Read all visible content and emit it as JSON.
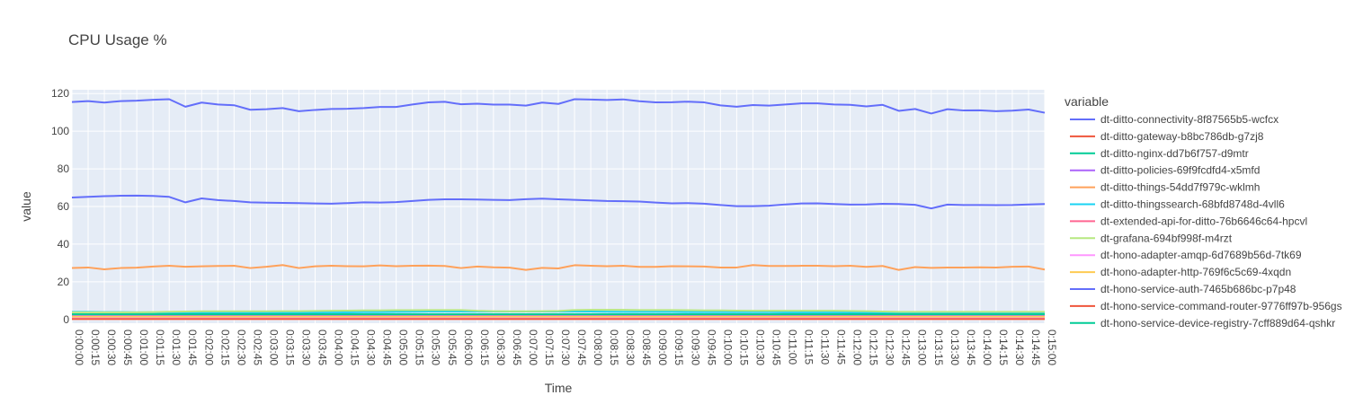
{
  "chart_data": {
    "type": "line",
    "title": "CPU Usage %",
    "xlabel": "Time",
    "ylabel": "value",
    "ylim": [
      -2,
      122
    ],
    "yticks": [
      0,
      20,
      40,
      60,
      80,
      100,
      120
    ],
    "grid": true,
    "legend_title": "variable",
    "legend_position": "right",
    "x": [
      "0:00:00",
      "0:00:15",
      "0:00:30",
      "0:00:45",
      "0:01:00",
      "0:01:15",
      "0:01:30",
      "0:01:45",
      "0:02:00",
      "0:02:15",
      "0:02:30",
      "0:02:45",
      "0:03:00",
      "0:03:15",
      "0:03:30",
      "0:03:45",
      "0:04:00",
      "0:04:15",
      "0:04:30",
      "0:04:45",
      "0:05:00",
      "0:05:15",
      "0:05:30",
      "0:05:45",
      "0:06:00",
      "0:06:15",
      "0:06:30",
      "0:06:45",
      "0:07:00",
      "0:07:15",
      "0:07:30",
      "0:07:45",
      "0:08:00",
      "0:08:15",
      "0:08:30",
      "0:08:45",
      "0:09:00",
      "0:09:15",
      "0:09:30",
      "0:09:45",
      "0:10:00",
      "0:10:15",
      "0:10:30",
      "0:10:45",
      "0:11:00",
      "0:11:15",
      "0:11:30",
      "0:11:45",
      "0:12:00",
      "0:12:15",
      "0:12:30",
      "0:12:45",
      "0:13:00",
      "0:13:15",
      "0:13:30",
      "0:13:45",
      "0:14:00",
      "0:14:15",
      "0:14:30",
      "0:14:45",
      "0:15:00"
    ],
    "series": [
      {
        "name": "dt-ditto-connectivity-8f87565b5-wcfcx",
        "color": "#636efa",
        "values": [
          115.5,
          116,
          115.2,
          116,
          116.2,
          116.7,
          117,
          113,
          115.2,
          114.2,
          113.8,
          111.4,
          111.7,
          112.3,
          110.6,
          111.3,
          111.8,
          111.9,
          112.3,
          112.9,
          112.9,
          114.2,
          115.3,
          115.6,
          114.3,
          114.6,
          114.1,
          114.1,
          113.6,
          115.2,
          114.5,
          117,
          116.8,
          116.6,
          116.9,
          115.9,
          115.3,
          115.4,
          115.7,
          115.3,
          113.7,
          113,
          113.9,
          113.6,
          114.2,
          114.8,
          114.8,
          114.2,
          114,
          113.2,
          114,
          110.8,
          111.8,
          109.4,
          111.7,
          111,
          111.1,
          110.6,
          110.9,
          111.5,
          109.8
        ]
      },
      {
        "name": "dt-ditto-gateway-b8bc786db-g7zj8",
        "color": "#EF553B",
        "values": [
          1.2,
          1.2,
          1.2,
          1.2,
          1.2,
          1.2,
          1.2,
          1.2,
          1.2,
          1.2,
          1.2,
          1.2,
          1.2,
          1.2,
          1.2,
          1.2,
          1.2,
          1.2,
          1.2,
          1.2,
          1.2,
          1.2,
          1.2,
          1.2,
          1.2,
          1.2,
          1.2,
          1.2,
          1.2,
          1.2,
          1.2,
          1.2,
          1.2,
          1.2,
          1.2,
          1.2,
          1.2,
          1.2,
          1.2,
          1.2,
          1.2,
          1.2,
          1.2,
          1.2,
          1.2,
          1.2,
          1.2,
          1.2,
          1.2,
          1.2,
          1.2,
          1.2,
          1.2,
          1.2,
          1.2,
          1.2,
          1.2,
          1.2,
          1.2,
          1.2,
          1.2
        ]
      },
      {
        "name": "dt-ditto-nginx-dd7b6f757-d9mtr",
        "color": "#00cc96",
        "values": [
          0.5,
          0.5,
          0.5,
          0.5,
          0.5,
          0.5,
          0.5,
          0.5,
          0.5,
          0.5,
          0.5,
          0.5,
          0.5,
          0.5,
          0.5,
          0.5,
          0.5,
          0.5,
          0.5,
          0.5,
          0.5,
          0.5,
          0.5,
          0.5,
          0.5,
          0.5,
          0.5,
          0.5,
          0.5,
          0.5,
          0.5,
          0.5,
          0.5,
          0.5,
          0.5,
          0.5,
          0.5,
          0.5,
          0.5,
          0.5,
          0.5,
          0.5,
          0.5,
          0.5,
          0.5,
          0.5,
          0.5,
          0.5,
          0.5,
          0.5,
          0.5,
          0.5,
          0.5,
          0.5,
          0.5,
          0.5,
          0.5,
          0.5,
          0.5,
          0.5,
          0.5
        ]
      },
      {
        "name": "dt-ditto-policies-69f9fcdfd4-x5mfd",
        "color": "#ab63fa",
        "values": [
          2,
          2,
          2,
          2,
          2,
          2,
          2,
          2,
          2,
          2,
          2,
          2,
          2,
          2,
          2,
          2,
          2,
          2,
          2,
          2,
          2,
          2,
          2,
          2,
          2,
          2,
          2,
          2,
          2,
          2,
          2,
          2,
          2,
          2,
          2,
          2,
          2,
          2,
          2,
          2,
          2,
          2,
          2,
          2,
          2,
          2,
          2,
          2,
          2,
          2,
          2,
          2,
          2,
          2,
          2,
          2,
          2,
          2,
          2,
          2,
          2
        ]
      },
      {
        "name": "dt-ditto-things-54dd7f979c-wklmh",
        "color": "#FFA15A",
        "values": [
          27.3,
          27.6,
          26.6,
          27.3,
          27.5,
          28.1,
          28.5,
          28,
          28.2,
          28.4,
          28.5,
          27.3,
          28,
          28.9,
          27.3,
          28.2,
          28.5,
          28.3,
          28.2,
          28.7,
          28.3,
          28.5,
          28.6,
          28.4,
          27.3,
          28.1,
          27.7,
          27.5,
          26.3,
          27.4,
          27.1,
          28.8,
          28.5,
          28.3,
          28.5,
          27.9,
          27.9,
          28.3,
          28.2,
          28.1,
          27.6,
          27.6,
          28.9,
          28.4,
          28.4,
          28.5,
          28.5,
          28.3,
          28.5,
          27.9,
          28.4,
          26.3,
          27.8,
          27.4,
          27.6,
          27.6,
          27.7,
          27.6,
          28,
          28.1,
          26.5
        ]
      },
      {
        "name": "dt-ditto-thingssearch-68bfd8748d-4vll6",
        "color": "#19d3f3",
        "values": [
          4,
          4,
          3.9,
          3.9,
          3.8,
          3.8,
          3.6,
          3.6,
          3.6,
          3.7,
          3.6,
          3.6,
          3.6,
          3.6,
          3.6,
          3.7,
          3.8,
          3.8,
          3.9,
          3.9,
          4,
          4.1,
          4.2,
          4.2,
          4.2,
          4.2,
          4.2,
          4.2,
          4.2,
          4.2,
          4.2,
          4.2,
          4.2,
          4.1,
          4,
          4,
          4,
          4,
          3.9,
          3.9,
          3.9,
          3.9,
          3.9,
          3.9,
          3.8,
          3.8,
          3.8,
          3.8,
          3.7,
          3.6,
          3.6,
          3.6,
          3.6,
          3.5,
          3.5,
          3.5,
          3.5,
          3.5,
          3.5,
          3.5,
          3.5
        ]
      },
      {
        "name": "dt-extended-api-for-ditto-76b6646c64-hpcvl",
        "color": "#FF6692",
        "values": [
          0.8,
          0.8,
          0.8,
          0.8,
          0.8,
          0.8,
          0.8,
          0.8,
          0.8,
          0.8,
          0.8,
          0.8,
          0.8,
          0.8,
          0.8,
          0.8,
          0.8,
          0.8,
          0.8,
          0.8,
          0.8,
          0.8,
          0.8,
          0.8,
          0.8,
          0.8,
          0.8,
          0.8,
          0.8,
          0.8,
          0.8,
          0.8,
          0.8,
          0.8,
          0.8,
          0.8,
          0.8,
          0.8,
          0.8,
          0.8,
          0.8,
          0.8,
          0.8,
          0.8,
          0.8,
          0.8,
          0.8,
          0.8,
          0.8,
          0.8,
          0.8,
          0.8,
          0.8,
          0.8,
          0.8,
          0.8,
          0.8,
          0.8,
          0.8,
          0.8,
          0.8
        ]
      },
      {
        "name": "dt-grafana-694bf998f-m4rzt",
        "color": "#B6E880",
        "values": [
          3.8,
          3.8,
          3.8,
          3.8,
          3.8,
          3.9,
          4.1,
          4.2,
          4.3,
          4.3,
          4.3,
          4.3,
          4.3,
          4.4,
          4.4,
          4.5,
          4.6,
          4.7,
          4.8,
          4.8,
          4.9,
          4.9,
          5,
          5,
          5,
          4.6,
          4.4,
          4.3,
          4.3,
          4.4,
          4.5,
          5,
          5.1,
          5.1,
          5.1,
          5,
          5,
          5,
          4.9,
          4.8,
          4.8,
          4.7,
          4.6,
          4.6,
          4.6,
          4.6,
          4.6,
          4.6,
          4.5,
          4.4,
          4.2,
          4,
          4,
          4,
          4,
          4,
          4,
          4,
          4,
          4,
          4
        ]
      },
      {
        "name": "dt-hono-adapter-amqp-6d7689b56d-7tk69",
        "color": "#FF97FF",
        "values": [
          1,
          1,
          1,
          1,
          1,
          1,
          1,
          1,
          1,
          1,
          1,
          1,
          1,
          1,
          1,
          1,
          1,
          1,
          1,
          1,
          1,
          1,
          1,
          1,
          1,
          1,
          1,
          1,
          1,
          1,
          1,
          1,
          1,
          1,
          1,
          1,
          1,
          1,
          1,
          1,
          1,
          1,
          1,
          1,
          1,
          1,
          1,
          1,
          1,
          1,
          1,
          1,
          1,
          1,
          1,
          1,
          1,
          1,
          1,
          1,
          1
        ]
      },
      {
        "name": "dt-hono-adapter-http-769f6c5c69-4xqdn",
        "color": "#FECB52",
        "values": [
          1.5,
          1.5,
          1.5,
          1.5,
          1.5,
          1.5,
          1.5,
          1.5,
          1.5,
          1.5,
          1.5,
          1.5,
          1.5,
          1.5,
          1.5,
          1.5,
          1.5,
          1.5,
          1.5,
          1.5,
          1.5,
          1.5,
          1.5,
          1.5,
          1.5,
          1.5,
          1.5,
          1.5,
          1.5,
          1.5,
          1.5,
          1.5,
          1.5,
          1.5,
          1.5,
          1.5,
          1.5,
          1.5,
          1.5,
          1.5,
          1.5,
          1.5,
          1.5,
          1.5,
          1.5,
          1.5,
          1.5,
          1.5,
          1.5,
          1.5,
          1.5,
          1.5,
          1.5,
          1.5,
          1.5,
          1.5,
          1.5,
          1.5,
          1.5,
          1.5,
          1.5
        ]
      },
      {
        "name": "dt-hono-service-auth-7465b686bc-p7p48",
        "color": "#636efa",
        "values": [
          64.8,
          65.1,
          65.5,
          65.7,
          65.8,
          65.6,
          65.1,
          62.2,
          64.3,
          63.4,
          62.9,
          62.2,
          62,
          61.9,
          61.8,
          61.6,
          61.5,
          61.8,
          62.2,
          62.1,
          62.3,
          62.9,
          63.5,
          63.8,
          63.8,
          63.7,
          63.5,
          63.4,
          63.9,
          64.2,
          63.8,
          63.5,
          63.2,
          62.9,
          62.8,
          62.6,
          62.1,
          61.7,
          61.8,
          61.5,
          60.8,
          60.2,
          60.2,
          60.4,
          61.1,
          61.6,
          61.7,
          61.3,
          61,
          61.1,
          61.4,
          61.3,
          60.9,
          59,
          61,
          60.8,
          60.8,
          60.7,
          60.8,
          61.1,
          61.3
        ]
      },
      {
        "name": "dt-hono-service-command-router-9776ff97b-956gs",
        "color": "#EF553B",
        "values": [
          0.2,
          0.2,
          0.2,
          0.2,
          0.2,
          0.2,
          0.2,
          0.2,
          0.2,
          0.2,
          0.2,
          0.2,
          0.2,
          0.2,
          0.2,
          0.2,
          0.2,
          0.2,
          0.2,
          0.2,
          0.2,
          0.2,
          0.2,
          0.2,
          0.2,
          0.2,
          0.2,
          0.2,
          0.2,
          0.2,
          0.2,
          0.2,
          0.2,
          0.2,
          0.2,
          0.2,
          0.2,
          0.2,
          0.2,
          0.2,
          0.2,
          0.2,
          0.2,
          0.2,
          0.2,
          0.2,
          0.2,
          0.2,
          0.2,
          0.2,
          0.2,
          0.2,
          0.2,
          0.2,
          0.2,
          0.2,
          0.2,
          0.2,
          0.2,
          0.2,
          0.2
        ]
      },
      {
        "name": "dt-hono-service-device-registry-7cff889d64-qshkr",
        "color": "#00cc96",
        "values": [
          2.8,
          2.8,
          2.8,
          2.8,
          2.8,
          2.8,
          2.8,
          2.8,
          2.8,
          2.8,
          2.8,
          2.8,
          2.8,
          2.8,
          2.8,
          2.8,
          2.8,
          2.8,
          2.8,
          2.8,
          2.8,
          2.8,
          2.8,
          2.8,
          2.8,
          2.8,
          2.8,
          2.8,
          2.8,
          2.8,
          2.8,
          2.8,
          2.8,
          2.8,
          2.8,
          2.8,
          2.8,
          2.8,
          2.8,
          2.8,
          2.8,
          2.8,
          2.8,
          2.8,
          2.8,
          2.8,
          2.8,
          2.8,
          2.8,
          2.8,
          2.8,
          2.8,
          2.8,
          2.8,
          2.8,
          2.8,
          2.8,
          2.8,
          2.8,
          2.8,
          2.8
        ]
      }
    ]
  }
}
